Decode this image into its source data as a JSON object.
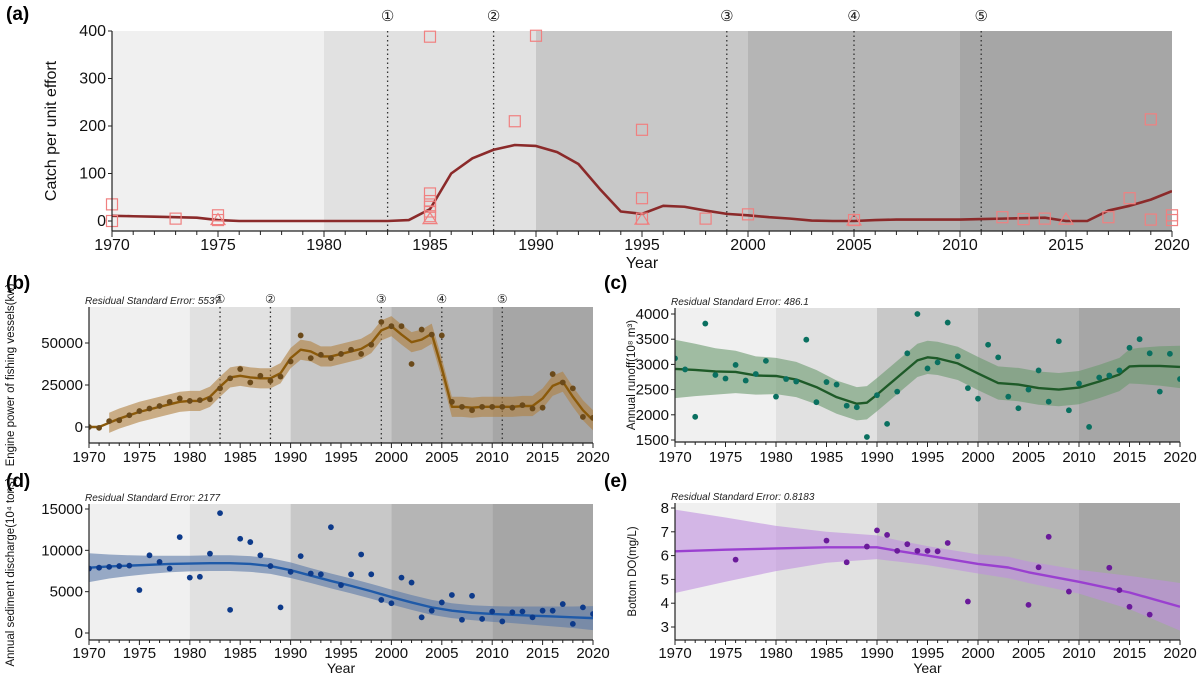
{
  "figure": {
    "background_bands": {
      "periods": [
        {
          "from": 1970,
          "to": 1980,
          "color": "#f0f0f0"
        },
        {
          "from": 1980,
          "to": 1990,
          "color": "#e1e1e1"
        },
        {
          "from": 1990,
          "to": 2000,
          "color": "#c8c8c8"
        },
        {
          "from": 2000,
          "to": 2010,
          "color": "#b5b5b5"
        },
        {
          "from": 2010,
          "to": 2020,
          "color": "#a6a6a6"
        }
      ]
    },
    "events": [
      {
        "label": "①",
        "year": 1983
      },
      {
        "label": "②",
        "year": 1988
      },
      {
        "label": "③",
        "year": 1999
      },
      {
        "label": "④",
        "year": 2005
      },
      {
        "label": "⑤",
        "year": 2011
      }
    ]
  },
  "chart_data": [
    {
      "id": "a",
      "panel_label": "(a)",
      "type": "line",
      "title": "",
      "xlabel": "Year",
      "ylabel": "Catch per unit effort",
      "xlim": [
        1970,
        2020
      ],
      "ylim": [
        -15,
        410
      ],
      "xticks": [
        1970,
        1975,
        1980,
        1985,
        1990,
        1995,
        2000,
        2005,
        2010,
        2015,
        2020
      ],
      "yticks": [
        0,
        100,
        200,
        300,
        400
      ],
      "show_events": true,
      "line_color": "#8b2a2a",
      "marker_color": "#f08080",
      "fit_line": {
        "x": [
          1970,
          1971,
          1972,
          1973,
          1974,
          1975,
          1976,
          1977,
          1978,
          1979,
          1980,
          1981,
          1982,
          1983,
          1984,
          1985,
          1986,
          1987,
          1988,
          1989,
          1990,
          1991,
          1992,
          1993,
          1994,
          1995,
          1996,
          1997,
          1998,
          1999,
          2000,
          2001,
          2002,
          2003,
          2004,
          2005,
          2006,
          2007,
          2008,
          2009,
          2010,
          2011,
          2012,
          2013,
          2014,
          2015,
          2016,
          2017,
          2018,
          2019,
          2020
        ],
        "y": [
          11,
          10,
          9,
          8,
          7,
          2,
          0,
          0,
          0,
          0,
          0,
          0,
          0,
          0,
          2,
          25,
          100,
          132,
          150,
          160,
          158,
          145,
          120,
          68,
          20,
          15,
          32,
          30,
          22,
          15,
          12,
          8,
          5,
          1,
          0,
          0,
          2,
          3,
          3,
          3,
          3,
          4,
          5,
          6,
          7,
          0,
          0,
          22,
          32,
          45,
          63
        ]
      },
      "squares": [
        {
          "x": 1970,
          "y": 35
        },
        {
          "x": 1970,
          "y": 0
        },
        {
          "x": 1973,
          "y": 5
        },
        {
          "x": 1975,
          "y": 12
        },
        {
          "x": 1975,
          "y": 2
        },
        {
          "x": 1985,
          "y": 388
        },
        {
          "x": 1985,
          "y": 58
        },
        {
          "x": 1985,
          "y": 42
        },
        {
          "x": 1985,
          "y": 30
        },
        {
          "x": 1985,
          "y": 20
        },
        {
          "x": 1985,
          "y": 10
        },
        {
          "x": 1989,
          "y": 210
        },
        {
          "x": 1990,
          "y": 390
        },
        {
          "x": 1995,
          "y": 192
        },
        {
          "x": 1995,
          "y": 48
        },
        {
          "x": 1995,
          "y": 5
        },
        {
          "x": 1998,
          "y": 5
        },
        {
          "x": 2000,
          "y": 14
        },
        {
          "x": 2005,
          "y": 2
        },
        {
          "x": 2012,
          "y": 8
        },
        {
          "x": 2013,
          "y": 4
        },
        {
          "x": 2014,
          "y": 5
        },
        {
          "x": 2017,
          "y": 8
        },
        {
          "x": 2018,
          "y": 48
        },
        {
          "x": 2019,
          "y": 214
        },
        {
          "x": 2019,
          "y": 3
        },
        {
          "x": 2020,
          "y": 12
        },
        {
          "x": 2020,
          "y": 2
        }
      ],
      "triangles": [
        {
          "x": 1975,
          "y": 3
        },
        {
          "x": 1985,
          "y": 5
        },
        {
          "x": 1995,
          "y": 4
        },
        {
          "x": 2005,
          "y": 2
        },
        {
          "x": 2015,
          "y": 4
        }
      ]
    },
    {
      "id": "b",
      "panel_label": "(b)",
      "type": "scatter",
      "xlabel": "",
      "ylabel": "Engine power of fishing vessels(kw)",
      "rse_label": "Residual Standard Error: 5537",
      "xlim": [
        1970,
        2020
      ],
      "ylim": [
        -10000,
        70000
      ],
      "xticks": [
        1970,
        1975,
        1980,
        1985,
        1990,
        1995,
        2000,
        2005,
        2010,
        2015,
        2020
      ],
      "yticks": [
        0,
        25000,
        50000
      ],
      "show_events": true,
      "line_color": "#8b5a0a",
      "band_color": "#b08040",
      "point_color": "#6b4a1a",
      "band_start": 1972,
      "points": {
        "x": [
          1970,
          1971,
          1972,
          1973,
          1974,
          1975,
          1976,
          1977,
          1978,
          1979,
          1980,
          1981,
          1982,
          1983,
          1984,
          1985,
          1986,
          1987,
          1988,
          1989,
          1990,
          1991,
          1992,
          1993,
          1994,
          1995,
          1996,
          1997,
          1998,
          1999,
          2000,
          2001,
          2002,
          2003,
          2004,
          2005,
          2006,
          2007,
          2008,
          2009,
          2010,
          2011,
          2012,
          2013,
          2014,
          2015,
          2016,
          2017,
          2018,
          2019,
          2020
        ],
        "y": [
          0,
          -500,
          3500,
          4000,
          7000,
          9500,
          11000,
          12500,
          15000,
          17000,
          15500,
          16000,
          16500,
          23000,
          29000,
          34500,
          26500,
          30500,
          27500,
          30000,
          39000,
          54500,
          41000,
          43000,
          41000,
          43500,
          46000,
          43500,
          49000,
          62500,
          60000,
          60000,
          37500,
          58000,
          55000,
          54500,
          15000,
          12000,
          10000,
          12000,
          12000,
          12000,
          11500,
          13000,
          11000,
          11500,
          31500,
          26500,
          23000,
          6000,
          5500
        ]
      },
      "fit": {
        "x": [
          1970,
          1971,
          1972,
          1973,
          1974,
          1975,
          1976,
          1977,
          1978,
          1979,
          1980,
          1981,
          1982,
          1983,
          1984,
          1985,
          1986,
          1987,
          1988,
          1989,
          1990,
          1991,
          1992,
          1993,
          1994,
          1995,
          1996,
          1997,
          1998,
          1999,
          2000,
          2001,
          2002,
          2003,
          2004,
          2005,
          2006,
          2007,
          2008,
          2009,
          2010,
          2011,
          2012,
          2013,
          2014,
          2015,
          2016,
          2017,
          2018,
          2019,
          2020
        ],
        "y": [
          0,
          0,
          2500,
          5000,
          7000,
          9000,
          10500,
          12000,
          13500,
          15000,
          15500,
          15500,
          18000,
          24000,
          29500,
          30500,
          29500,
          29000,
          29000,
          32000,
          41000,
          46000,
          45000,
          42000,
          42000,
          43500,
          45000,
          46500,
          50000,
          57500,
          60000,
          55000,
          50500,
          52000,
          55500,
          35000,
          12000,
          12000,
          11500,
          12000,
          12000,
          12000,
          12000,
          12500,
          12500,
          17000,
          24500,
          27000,
          18000,
          10000,
          4000
        ]
      },
      "band_halfwidth": 6000
    },
    {
      "id": "c",
      "panel_label": "(c)",
      "type": "scatter",
      "xlabel": "",
      "ylabel": "Annual runoff(10⁸ m³)",
      "rse_label": "Residual Standard Error: 486.1",
      "xlim": [
        1970,
        2020
      ],
      "ylim": [
        1450,
        4100
      ],
      "xticks": [
        1970,
        1975,
        1980,
        1985,
        1990,
        1995,
        2000,
        2005,
        2010,
        2015,
        2020
      ],
      "yticks": [
        1500,
        2000,
        2500,
        3000,
        3500,
        4000
      ],
      "show_events": false,
      "line_color": "#1e5a28",
      "band_color": "#6a9a6e",
      "point_color": "#0a7060",
      "points": {
        "x": [
          1970,
          1971,
          1972,
          1973,
          1974,
          1975,
          1976,
          1977,
          1978,
          1979,
          1980,
          1981,
          1982,
          1983,
          1984,
          1985,
          1986,
          1987,
          1988,
          1989,
          1990,
          1991,
          1992,
          1993,
          1994,
          1995,
          1996,
          1997,
          1998,
          1999,
          2000,
          2001,
          2002,
          2003,
          2004,
          2005,
          2006,
          2007,
          2008,
          2009,
          2010,
          2011,
          2012,
          2013,
          2014,
          2015,
          2016,
          2017,
          2018,
          2019,
          2020
        ],
        "y": [
          3120,
          2900,
          1960,
          3810,
          2790,
          2720,
          2990,
          2680,
          2810,
          3070,
          2360,
          2710,
          2660,
          3490,
          2250,
          2650,
          2600,
          2180,
          2150,
          1560,
          2390,
          1820,
          2460,
          3220,
          4000,
          2920,
          3040,
          3830,
          3160,
          2530,
          2320,
          3390,
          3140,
          2360,
          2130,
          2500,
          2880,
          2260,
          3460,
          2090,
          2620,
          1760,
          2740,
          2780,
          2880,
          3330,
          3500,
          3220,
          2460,
          3210,
          2710
        ]
      },
      "fit": {
        "x": [
          1970,
          1972,
          1974,
          1976,
          1978,
          1980,
          1982,
          1984,
          1986,
          1988,
          1989,
          1990,
          1992,
          1994,
          1995,
          1996,
          1998,
          2000,
          2002,
          2004,
          2006,
          2008,
          2010,
          2012,
          2014,
          2015,
          2016,
          2018,
          2020
        ],
        "y": [
          2910,
          2890,
          2860,
          2850,
          2780,
          2770,
          2700,
          2550,
          2350,
          2220,
          2240,
          2400,
          2740,
          3080,
          3140,
          3120,
          3020,
          2820,
          2630,
          2600,
          2530,
          2500,
          2540,
          2660,
          2800,
          2960,
          2970,
          2970,
          2950
        ]
      },
      "band_halfwidth": [
        580,
        520,
        460,
        420,
        380,
        360,
        350,
        340,
        330,
        330,
        330,
        330,
        330,
        330,
        330,
        330,
        330,
        330,
        330,
        330,
        330,
        330,
        330,
        330,
        330,
        340,
        360,
        390,
        420
      ]
    },
    {
      "id": "d",
      "panel_label": "(d)",
      "type": "scatter",
      "xlabel": "Year",
      "ylabel": "Annual sediment discharge(10⁴ tons)",
      "rse_label": "Residual Standard Error: 2177",
      "xlim": [
        1970,
        2020
      ],
      "ylim": [
        -700,
        15000
      ],
      "xticks": [
        1970,
        1975,
        1980,
        1985,
        1990,
        1995,
        2000,
        2005,
        2010,
        2015,
        2020
      ],
      "yticks": [
        0,
        5000,
        10000,
        15000
      ],
      "show_events": false,
      "line_color": "#1f5aa8",
      "band_color": "#5c7aa8",
      "point_color": "#0d3a8a",
      "points": {
        "x": [
          1970,
          1971,
          1972,
          1973,
          1974,
          1975,
          1976,
          1977,
          1978,
          1979,
          1980,
          1981,
          1982,
          1983,
          1984,
          1985,
          1986,
          1987,
          1988,
          1989,
          1990,
          1991,
          1992,
          1993,
          1994,
          1995,
          1996,
          1997,
          1998,
          1999,
          2000,
          2001,
          2002,
          2003,
          2004,
          2005,
          2006,
          2007,
          2008,
          2009,
          2010,
          2011,
          2012,
          2013,
          2014,
          2015,
          2016,
          2017,
          2018,
          2019,
          2020
        ],
        "y": [
          7800,
          7900,
          8000,
          8100,
          8150,
          5200,
          9400,
          8600,
          7800,
          11600,
          6700,
          6800,
          9600,
          14500,
          2800,
          11400,
          11000,
          9400,
          8100,
          3100,
          7400,
          9300,
          7200,
          7100,
          12800,
          5800,
          7100,
          9500,
          7100,
          4000,
          3600,
          6700,
          6100,
          1900,
          2700,
          3700,
          4600,
          1600,
          4500,
          1700,
          2600,
          1400,
          2500,
          2600,
          1900,
          2700,
          2700,
          3500,
          1100,
          3100,
          2300
        ]
      },
      "fit": {
        "x": [
          1970,
          1972,
          1974,
          1976,
          1978,
          1980,
          1982,
          1984,
          1986,
          1988,
          1990,
          1992,
          1994,
          1996,
          1998,
          2000,
          2002,
          2004,
          2006,
          2008,
          2010,
          2012,
          2014,
          2016,
          2018,
          2020
        ],
        "y": [
          7900,
          8050,
          8150,
          8250,
          8350,
          8400,
          8450,
          8450,
          8350,
          8100,
          7600,
          6950,
          6300,
          5700,
          5050,
          4350,
          3700,
          3100,
          2700,
          2450,
          2300,
          2200,
          2100,
          2000,
          1900,
          1800
        ]
      },
      "band_halfwidth": [
        1750,
        1450,
        1250,
        1100,
        1000,
        950,
        950,
        950,
        950,
        950,
        950,
        900,
        900,
        900,
        900,
        900,
        900,
        900,
        900,
        900,
        950,
        1000,
        1100,
        1200,
        1300,
        1450
      ]
    },
    {
      "id": "e",
      "panel_label": "(e)",
      "type": "scatter",
      "xlabel": "Year",
      "ylabel": "Bottom DO(mg/L)",
      "rse_label": "Residual Standard Error: 0.8183",
      "xlim": [
        1970,
        2020
      ],
      "ylim": [
        2.5,
        8.1
      ],
      "xticks": [
        1970,
        1975,
        1980,
        1985,
        1990,
        1995,
        2000,
        2005,
        2010,
        2015,
        2020
      ],
      "yticks": [
        3,
        4,
        5,
        6,
        7,
        8
      ],
      "show_events": false,
      "line_color": "#9a40d0",
      "band_color": "#c090e0",
      "point_color": "#6a1a9a",
      "points": {
        "x": [
          1976,
          1985,
          1987,
          1989,
          1990,
          1991,
          1992,
          1993,
          1994,
          1995,
          1996,
          1997,
          1999,
          2005,
          2006,
          2007,
          2009,
          2013,
          2014,
          2015,
          2017
        ],
        "y": [
          5.83,
          6.63,
          5.72,
          6.38,
          7.06,
          6.87,
          6.2,
          6.48,
          6.2,
          6.2,
          6.18,
          6.53,
          4.07,
          3.93,
          5.51,
          6.79,
          4.49,
          5.49,
          4.55,
          3.85,
          3.52
        ]
      },
      "fit": {
        "x": [
          1970,
          1975,
          1980,
          1985,
          1990,
          1992,
          1995,
          2000,
          2003,
          2005,
          2010,
          2015,
          2020
        ],
        "y": [
          6.18,
          6.25,
          6.3,
          6.35,
          6.35,
          6.2,
          6.0,
          5.65,
          5.5,
          5.3,
          4.9,
          4.45,
          3.85
        ]
      },
      "band_halfwidth": [
        1.75,
        1.35,
        0.95,
        0.65,
        0.5,
        0.45,
        0.4,
        0.4,
        0.45,
        0.45,
        0.5,
        0.7,
        1.0
      ]
    }
  ]
}
